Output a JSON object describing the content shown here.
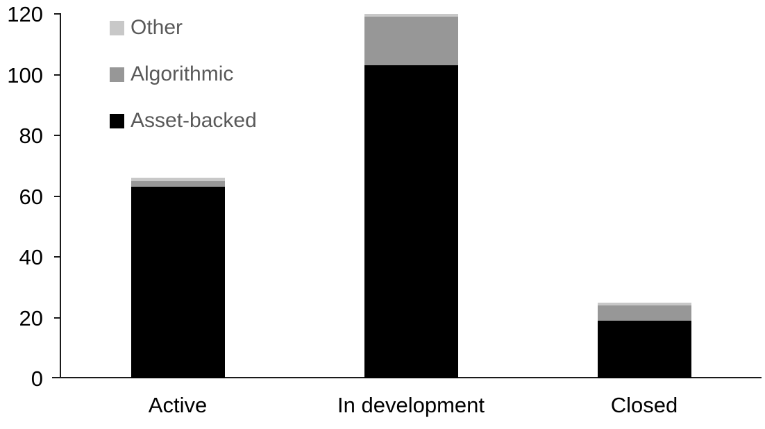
{
  "chart_data": {
    "type": "bar",
    "stacked": true,
    "title": "",
    "xlabel": "",
    "ylabel": "",
    "categories": [
      "Active",
      "In development",
      "Closed"
    ],
    "series": [
      {
        "name": "Asset-backed",
        "color": "#000000",
        "values": [
          63,
          103,
          19
        ]
      },
      {
        "name": "Algorithmic",
        "color": "#979797",
        "values": [
          2,
          16,
          5
        ]
      },
      {
        "name": "Other",
        "color": "#c8c8c8",
        "values": [
          1,
          1,
          1
        ]
      }
    ],
    "totals": [
      66,
      120,
      25
    ],
    "ylim": [
      0,
      120
    ],
    "yticks": [
      0,
      20,
      40,
      60,
      80,
      100,
      120
    ],
    "ytick_labels": [
      "0",
      "20",
      "40",
      "60",
      "80",
      "100",
      "120"
    ],
    "grid": false,
    "legend_position": "top-left",
    "legend_order": [
      "Other",
      "Algorithmic",
      "Asset-backed"
    ]
  },
  "colors": {
    "axis": "#1a1a1a",
    "tick_label_text": "#000000",
    "category_label_text": "#000000",
    "legend_text": "#595959",
    "background": "#ffffff"
  }
}
